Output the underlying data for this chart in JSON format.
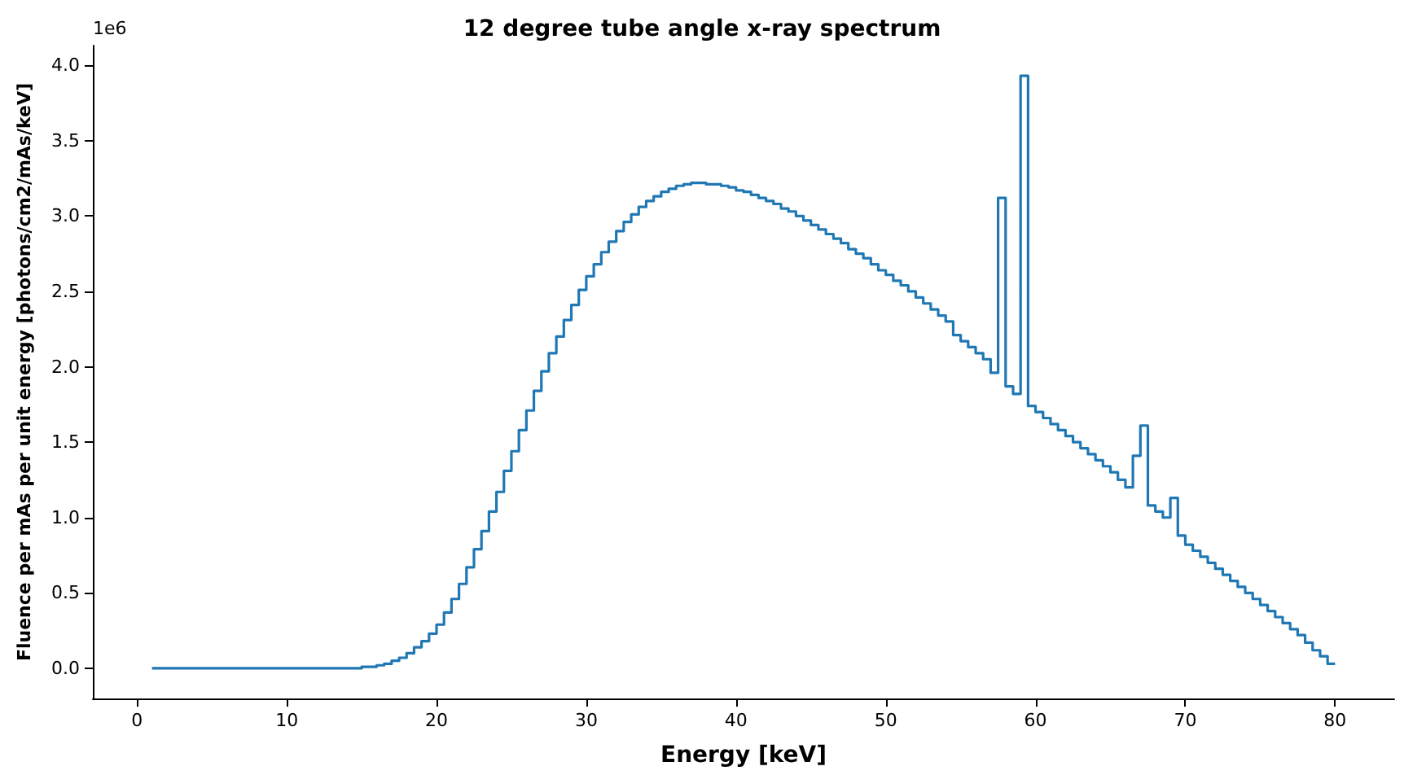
{
  "chart_data": {
    "type": "step",
    "title": "12 degree tube angle x-ray spectrum",
    "xlabel": "Energy [keV]",
    "ylabel": "Fluence per mAs per unit energy [photons/cm2/mAs/keV]",
    "annotations": [
      "1e6"
    ],
    "x": [
      1,
      15,
      15.5,
      16,
      16.5,
      17,
      17.5,
      18,
      18.5,
      19,
      19.5,
      20,
      20.5,
      21,
      21.5,
      22,
      22.5,
      23,
      23.5,
      24,
      24.5,
      25,
      25.5,
      26,
      26.5,
      27,
      27.5,
      28,
      28.5,
      29,
      29.5,
      30,
      30.5,
      31,
      31.5,
      32,
      32.5,
      33,
      33.5,
      34,
      34.5,
      35,
      35.5,
      36,
      36.5,
      37,
      37.5,
      38,
      38.5,
      39,
      39.5,
      40,
      40.5,
      41,
      41.5,
      42,
      42.5,
      43,
      43.5,
      44,
      44.5,
      45,
      45.5,
      46,
      46.5,
      47,
      47.5,
      48,
      48.5,
      49,
      49.5,
      50,
      50.5,
      51,
      51.5,
      52,
      52.5,
      53,
      53.5,
      54,
      54.5,
      55,
      55.5,
      56,
      56.5,
      57,
      57.5,
      58,
      58.5,
      59,
      59.5,
      60,
      60.5,
      61,
      61.5,
      62,
      62.5,
      63,
      63.5,
      64,
      64.5,
      65,
      65.5,
      66,
      66.5,
      67,
      67.5,
      68,
      68.5,
      69,
      69.5,
      70,
      70.5,
      71,
      71.5,
      72,
      72.5,
      73,
      73.5,
      74,
      74.5,
      75,
      75.5,
      76,
      76.5,
      77,
      77.5,
      78,
      78.5,
      79,
      79.5,
      80
    ],
    "series": [
      {
        "color": "#1f77b4",
        "values": [
          0,
          0,
          0.01,
          0.01,
          0.02,
          0.03,
          0.05,
          0.07,
          0.1,
          0.14,
          0.18,
          0.23,
          0.29,
          0.37,
          0.46,
          0.56,
          0.67,
          0.79,
          0.91,
          1.04,
          1.17,
          1.31,
          1.44,
          1.58,
          1.71,
          1.84,
          1.97,
          2.09,
          2.2,
          2.31,
          2.41,
          2.51,
          2.6,
          2.68,
          2.76,
          2.83,
          2.9,
          2.96,
          3.01,
          3.06,
          3.1,
          3.13,
          3.16,
          3.18,
          3.2,
          3.21,
          3.22,
          3.22,
          3.21,
          3.21,
          3.2,
          3.19,
          3.17,
          3.16,
          3.14,
          3.12,
          3.1,
          3.08,
          3.05,
          3.03,
          3.0,
          2.97,
          2.94,
          2.91,
          2.88,
          2.85,
          2.82,
          2.78,
          2.75,
          2.72,
          2.68,
          2.64,
          2.61,
          2.57,
          2.54,
          2.5,
          2.46,
          2.42,
          2.38,
          2.34,
          2.3,
          2.21,
          2.17,
          2.13,
          2.09,
          2.05,
          1.96,
          3.12,
          1.87,
          1.82,
          3.93,
          1.74,
          1.7,
          1.66,
          1.62,
          1.58,
          1.54,
          1.5,
          1.46,
          1.42,
          1.38,
          1.34,
          1.3,
          1.25,
          1.2,
          1.41,
          1.61,
          1.08,
          1.04,
          1.0,
          1.13,
          0.88,
          0.82,
          0.78,
          0.74,
          0.7,
          0.66,
          0.62,
          0.58,
          0.54,
          0.5,
          0.46,
          0.42,
          0.38,
          0.34,
          0.3,
          0.26,
          0.22,
          0.17,
          0.12,
          0.08,
          0.03
        ]
      }
    ],
    "xlim": [
      -2.95,
      83.95
    ],
    "ylim": [
      -0.2,
      4.13
    ],
    "xticks": [
      0,
      10,
      20,
      30,
      40,
      50,
      60,
      70,
      80
    ],
    "yticks": [
      {
        "value": 0,
        "label": "0.0"
      },
      {
        "value": 0.5,
        "label": "0.5"
      },
      {
        "value": 1,
        "label": "1.0"
      },
      {
        "value": 1.5,
        "label": "1.5"
      },
      {
        "value": 2,
        "label": "2.0"
      },
      {
        "value": 2.5,
        "label": "2.5"
      },
      {
        "value": 3,
        "label": "3.0"
      },
      {
        "value": 3.5,
        "label": "3.5"
      },
      {
        "value": 4,
        "label": "4.0"
      }
    ],
    "grid": false,
    "marker": "none",
    "line_style": "solid"
  }
}
